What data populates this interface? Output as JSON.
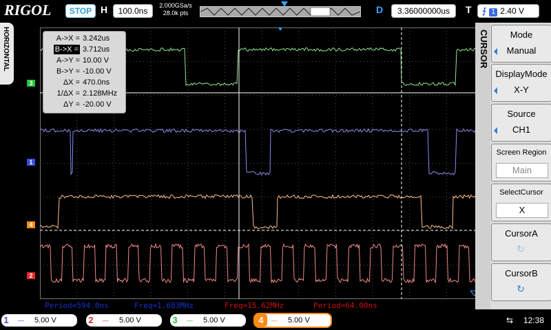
{
  "app": {
    "brand": "RIGOL"
  },
  "top": {
    "run_state": "STOP",
    "h_label": "H",
    "timebase": "100.0ns",
    "sample_rate": "2.000GSa/s",
    "memory_depth": "28.0k pts",
    "d_label": "D",
    "delay": "3.36000000us",
    "t_label": "T",
    "trigger_edge": "f",
    "trigger_channel": "1",
    "trigger_level": "2.40 V"
  },
  "left_tab": "HORIZONTAL",
  "cursor_info": [
    {
      "key": "A->X =",
      "value": "3.242us"
    },
    {
      "key": "B->X =",
      "value": "3.712us",
      "selected": true
    },
    {
      "key": "A->Y =",
      "value": "10.00 V"
    },
    {
      "key": "B->Y =",
      "value": "-10.00 V"
    },
    {
      "key": "ΔX =",
      "value": "470.0ns"
    },
    {
      "key": "1/ΔX =",
      "value": "2.128MHz"
    },
    {
      "key": "ΔY =",
      "value": "-20.00 V"
    }
  ],
  "channel_markers": [
    {
      "id": "3",
      "color": "#27c23a"
    },
    {
      "id": "1",
      "color": "#3a4fd8"
    },
    {
      "id": "4",
      "color": "#ff8a14"
    },
    {
      "id": "2",
      "color": "#e8282a"
    }
  ],
  "measurements": [
    {
      "text": "Period=594.0ns",
      "color": "#1133cc"
    },
    {
      "text": "Freq=1.683MHz",
      "color": "#1133cc"
    },
    {
      "text": "Freq=15.62MHz",
      "color": "#cc1111"
    },
    {
      "text": "Period=64.00ns",
      "color": "#cc1111"
    }
  ],
  "menu": {
    "title": "CURSOR",
    "items": [
      {
        "label": "Mode",
        "value": "Manual"
      },
      {
        "label": "DisplayMode",
        "value": "X-Y"
      },
      {
        "label": "Source",
        "value": "CH1"
      },
      {
        "label": "Screen Region",
        "value": "Main"
      },
      {
        "label": "SelectCursor",
        "value": "X"
      },
      {
        "label": "CursorA",
        "value": "↻"
      },
      {
        "label": "CursorB",
        "value": "↻"
      }
    ]
  },
  "channels": [
    {
      "n": "1",
      "coupling": "—",
      "scale": "5.00 V",
      "color": "#3a4fd8"
    },
    {
      "n": "2",
      "coupling": "—",
      "scale": "5.00 V",
      "color": "#e8282a"
    },
    {
      "n": "3",
      "coupling": "—",
      "scale": "5.00 V",
      "color": "#27c23a"
    },
    {
      "n": "4",
      "coupling": "—",
      "scale": "5.00 V",
      "color": "#ff8a14"
    }
  ],
  "status": {
    "usb": "⇆",
    "time": "12:38"
  },
  "colors": {
    "ch1": "#8b8cf0",
    "ch2": "#f08a8a",
    "ch3": "#8fe88f",
    "ch4": "#ffc28a",
    "grid": "#444444",
    "cursor": "#ffffff",
    "accent": "#2f9fd6"
  }
}
